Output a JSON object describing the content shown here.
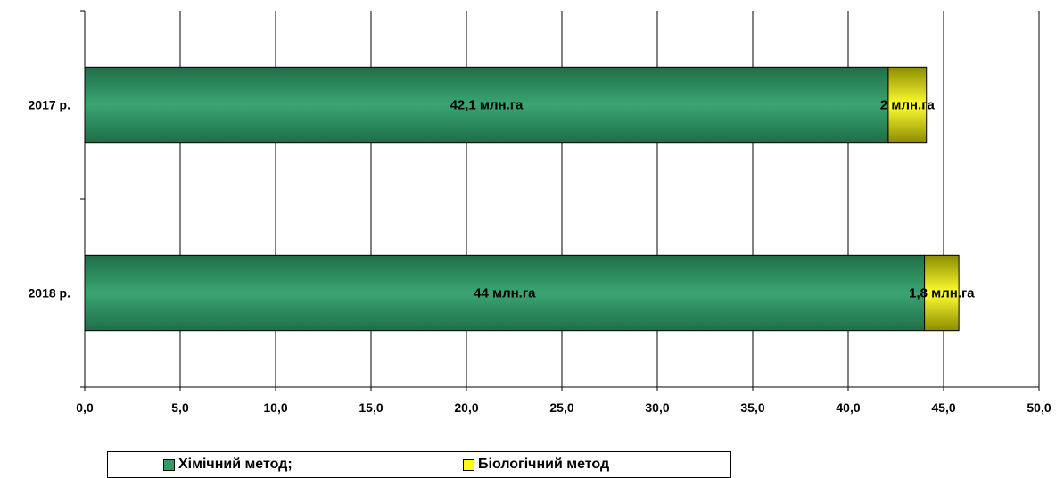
{
  "chart_data": {
    "type": "bar",
    "orientation": "horizontal",
    "stacked": true,
    "categories": [
      "2017 р.",
      "2018 р."
    ],
    "series": [
      {
        "name": "Хімічний метод;",
        "color": "#339966",
        "values": [
          42.1,
          44.0
        ],
        "data_labels": [
          "42,1 млн.га",
          "44 млн.га"
        ]
      },
      {
        "name": "Біологічний метод",
        "color": "#FFFF00",
        "values": [
          2.0,
          1.8
        ],
        "data_labels": [
          "2 млн.га",
          "1,8 млн.га"
        ]
      }
    ],
    "xlim": [
      0,
      50
    ],
    "x_ticks": [
      "0,0",
      "5,0",
      "10,0",
      "15,0",
      "20,0",
      "25,0",
      "30,0",
      "35,0",
      "40,0",
      "45,0",
      "50,0"
    ],
    "grid": "vertical",
    "legend_position": "bottom"
  }
}
